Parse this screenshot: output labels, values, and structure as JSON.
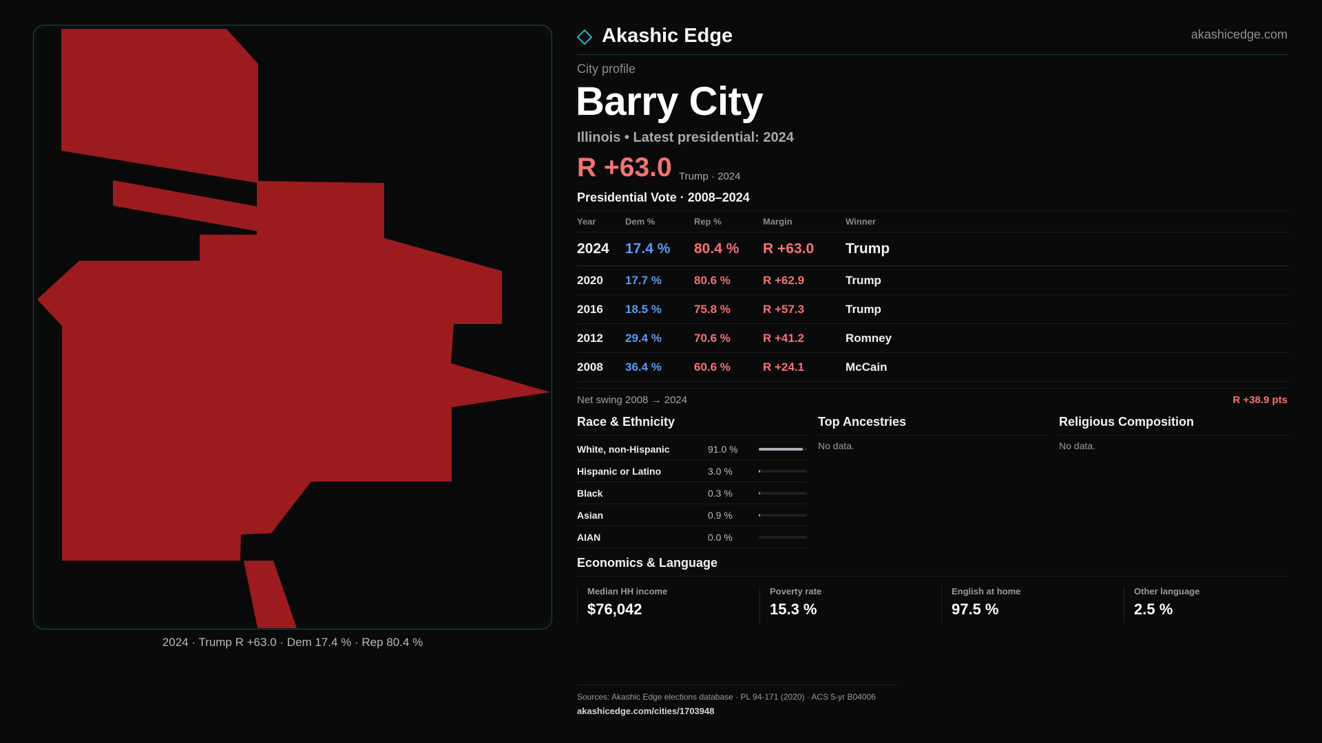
{
  "header": {
    "brand": "Akashic Edge",
    "site_url": "akashicedge.com",
    "accent_color": "#2ab3c4"
  },
  "profile": {
    "eyebrow": "City profile",
    "city": "Barry City",
    "subline": "Illinois • Latest presidential: 2024",
    "headline_margin": "R +63.0",
    "headline_winner": "Trump · 2024"
  },
  "map": {
    "fill_color": "#9c1b1f",
    "caption": "2024 · Trump R +63.0 · Dem 17.4 % · Rep 80.4 %"
  },
  "votes": {
    "title": "Presidential Vote · 2008–2024",
    "columns": [
      "Year",
      "Dem %",
      "Rep %",
      "Margin",
      "Winner"
    ],
    "rows": [
      {
        "year": "2024",
        "dem": "17.4 %",
        "rep": "80.4 %",
        "margin": "R +63.0",
        "winner": "Trump"
      },
      {
        "year": "2020",
        "dem": "17.7 %",
        "rep": "80.6 %",
        "margin": "R +62.9",
        "winner": "Trump"
      },
      {
        "year": "2016",
        "dem": "18.5 %",
        "rep": "75.8 %",
        "margin": "R +57.3",
        "winner": "Trump"
      },
      {
        "year": "2012",
        "dem": "29.4 %",
        "rep": "70.6 %",
        "margin": "R +41.2",
        "winner": "Romney"
      },
      {
        "year": "2008",
        "dem": "36.4 %",
        "rep": "60.6 %",
        "margin": "R +24.1",
        "winner": "McCain"
      }
    ],
    "swing_label": "Net swing 2008 → 2024",
    "swing_value": "R +38.9 pts"
  },
  "race": {
    "title": "Race & Ethnicity",
    "rows": [
      {
        "label": "White, non-Hispanic",
        "pct": "91.0 %",
        "value": 91.0,
        "color": "#aab0b8"
      },
      {
        "label": "Hispanic or Latino",
        "pct": "3.0 %",
        "value": 3.0,
        "color": "#e0a63a"
      },
      {
        "label": "Black",
        "pct": "0.3 %",
        "value": 0.3,
        "color": "#8a6cd6"
      },
      {
        "label": "Asian",
        "pct": "0.9 %",
        "value": 0.9,
        "color": "#3fb6a8"
      },
      {
        "label": "AIAN",
        "pct": "0.0 %",
        "value": 0.0,
        "color": "#c46b4a"
      }
    ]
  },
  "ancestry": {
    "title": "Top Ancestries",
    "empty": "No data."
  },
  "religion": {
    "title": "Religious Composition",
    "empty": "No data."
  },
  "economics": {
    "title": "Economics & Language",
    "stats": [
      {
        "label": "Median HH income",
        "value": "$76,042"
      },
      {
        "label": "Poverty rate",
        "value": "15.3 %"
      },
      {
        "label": "English at home",
        "value": "97.5 %"
      },
      {
        "label": "Other language",
        "value": "2.5 %"
      }
    ]
  },
  "footer": {
    "sources": "Sources: Akashic Edge elections database · PL 94-171 (2020) · ACS 5-yr B04006",
    "page_url": "akashicedge.com/cities/1703948"
  }
}
